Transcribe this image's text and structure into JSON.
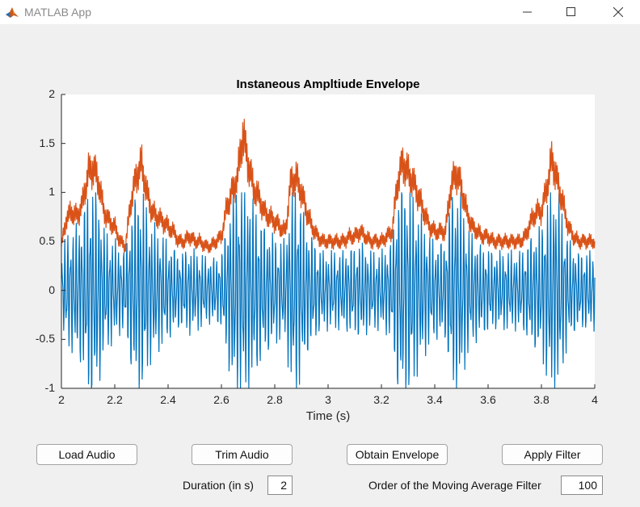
{
  "window": {
    "title": "MATLAB App",
    "controls": {
      "minimize_icon": "minimize-icon",
      "maximize_icon": "maximize-icon",
      "close_icon": "close-icon"
    },
    "app_icon": "matlab-logo-icon"
  },
  "buttons": {
    "load_audio": "Load Audio",
    "trim_audio": "Trim Audio",
    "obtain_envelope": "Obtain Envelope",
    "apply_filter": "Apply Filter"
  },
  "fields": {
    "duration_label": "Duration (in s)",
    "duration_value": "2",
    "filter_order_label": "Order of the Moving Average Filter",
    "filter_order_value": "100"
  },
  "colors": {
    "signal": "#0072bd",
    "envelope": "#d95319"
  },
  "chart_data": {
    "type": "line",
    "title": "Instaneous Ampltiude Envelope",
    "xlabel": "Time (s)",
    "ylabel": "",
    "xlim": [
      2,
      4
    ],
    "ylim": [
      -1,
      2
    ],
    "x_ticks": [
      "2",
      "2.2",
      "2.4",
      "2.6",
      "2.8",
      "3",
      "3.2",
      "3.4",
      "3.6",
      "3.8",
      "4"
    ],
    "y_ticks": [
      "2",
      "1.5",
      "1",
      "0.5",
      "0",
      "-0.5",
      "-1"
    ],
    "grid": false,
    "legend": "none",
    "series": [
      {
        "role": "signal",
        "x": [
          2.0,
          2.02,
          2.04,
          2.06,
          2.08,
          2.1,
          2.12,
          2.14,
          2.16,
          2.18,
          2.2,
          2.22,
          2.24,
          2.26,
          2.28,
          2.3,
          2.32,
          2.34,
          2.36,
          2.38,
          2.4,
          2.42,
          2.44,
          2.46,
          2.48,
          2.5,
          2.52,
          2.54,
          2.56,
          2.58,
          2.6,
          2.62,
          2.64,
          2.66,
          2.68,
          2.7,
          2.72,
          2.74,
          2.76,
          2.78,
          2.8,
          2.82,
          2.84,
          2.86,
          2.88,
          2.9,
          2.92,
          2.94,
          2.96,
          2.98,
          3.0,
          3.02,
          3.04,
          3.06,
          3.08,
          3.1,
          3.12,
          3.14,
          3.16,
          3.18,
          3.2,
          3.22,
          3.24,
          3.26,
          3.28,
          3.3,
          3.32,
          3.34,
          3.36,
          3.38,
          3.4,
          3.42,
          3.44,
          3.46,
          3.48,
          3.5,
          3.52,
          3.54,
          3.56,
          3.58,
          3.6,
          3.62,
          3.64,
          3.66,
          3.68,
          3.7,
          3.72,
          3.74,
          3.76,
          3.78,
          3.8,
          3.82,
          3.84,
          3.86,
          3.88,
          3.9,
          3.92,
          3.94,
          3.96,
          3.98,
          4.0
        ],
        "amplitude": [
          0.35,
          0.5,
          0.55,
          0.6,
          0.7,
          0.95,
          1.0,
          0.85,
          0.55,
          0.5,
          0.45,
          0.4,
          0.35,
          0.7,
          0.9,
          0.95,
          0.75,
          0.6,
          0.55,
          0.5,
          0.45,
          0.4,
          0.35,
          0.35,
          0.4,
          0.35,
          0.35,
          0.3,
          0.3,
          0.3,
          0.35,
          0.6,
          0.9,
          1.0,
          1.0,
          0.95,
          0.8,
          0.7,
          0.6,
          0.55,
          0.5,
          0.45,
          0.45,
          0.85,
          0.95,
          0.8,
          0.6,
          0.5,
          0.4,
          0.35,
          0.35,
          0.35,
          0.35,
          0.35,
          0.4,
          0.4,
          0.45,
          0.4,
          0.35,
          0.35,
          0.35,
          0.4,
          0.45,
          0.9,
          1.0,
          1.0,
          0.85,
          0.7,
          0.6,
          0.5,
          0.45,
          0.45,
          0.45,
          0.85,
          0.95,
          0.85,
          0.6,
          0.5,
          0.45,
          0.4,
          0.4,
          0.35,
          0.35,
          0.35,
          0.35,
          0.35,
          0.35,
          0.4,
          0.5,
          0.55,
          0.6,
          0.8,
          0.95,
          0.9,
          0.7,
          0.5,
          0.4,
          0.35,
          0.35,
          0.35,
          0.35
        ]
      },
      {
        "role": "envelope",
        "x": [
          2.0,
          2.02,
          2.04,
          2.06,
          2.08,
          2.1,
          2.12,
          2.14,
          2.16,
          2.18,
          2.2,
          2.22,
          2.24,
          2.26,
          2.28,
          2.3,
          2.32,
          2.34,
          2.36,
          2.38,
          2.4,
          2.42,
          2.44,
          2.46,
          2.48,
          2.5,
          2.52,
          2.54,
          2.56,
          2.58,
          2.6,
          2.62,
          2.64,
          2.66,
          2.68,
          2.7,
          2.72,
          2.74,
          2.76,
          2.78,
          2.8,
          2.82,
          2.84,
          2.86,
          2.88,
          2.9,
          2.92,
          2.94,
          2.96,
          2.98,
          3.0,
          3.02,
          3.04,
          3.06,
          3.08,
          3.1,
          3.12,
          3.14,
          3.16,
          3.18,
          3.2,
          3.22,
          3.24,
          3.26,
          3.28,
          3.3,
          3.32,
          3.34,
          3.36,
          3.38,
          3.4,
          3.42,
          3.44,
          3.46,
          3.48,
          3.5,
          3.52,
          3.54,
          3.56,
          3.58,
          3.6,
          3.62,
          3.64,
          3.66,
          3.68,
          3.7,
          3.72,
          3.74,
          3.76,
          3.78,
          3.8,
          3.82,
          3.84,
          3.86,
          3.88,
          3.9,
          3.92,
          3.94,
          3.96,
          3.98,
          4.0
        ],
        "amplitude": [
          0.45,
          0.75,
          0.8,
          0.75,
          0.9,
          1.2,
          1.25,
          1.1,
          0.8,
          0.7,
          0.65,
          0.5,
          0.45,
          0.9,
          1.15,
          1.3,
          1.0,
          0.8,
          0.75,
          0.7,
          0.65,
          0.6,
          0.5,
          0.5,
          0.55,
          0.5,
          0.5,
          0.45,
          0.45,
          0.5,
          0.55,
          0.85,
          1.0,
          1.15,
          1.6,
          1.3,
          1.05,
          0.95,
          0.8,
          0.75,
          0.7,
          0.65,
          0.6,
          1.1,
          1.15,
          1.0,
          0.8,
          0.65,
          0.55,
          0.5,
          0.5,
          0.5,
          0.5,
          0.5,
          0.55,
          0.55,
          0.6,
          0.55,
          0.5,
          0.5,
          0.5,
          0.55,
          0.6,
          1.1,
          1.3,
          1.2,
          1.1,
          0.95,
          0.8,
          0.65,
          0.6,
          0.6,
          0.6,
          1.05,
          1.2,
          1.05,
          0.8,
          0.65,
          0.6,
          0.55,
          0.55,
          0.5,
          0.5,
          0.5,
          0.5,
          0.5,
          0.5,
          0.55,
          0.7,
          0.8,
          0.8,
          1.05,
          1.35,
          1.1,
          0.9,
          0.65,
          0.55,
          0.5,
          0.5,
          0.5,
          0.5
        ]
      }
    ]
  }
}
